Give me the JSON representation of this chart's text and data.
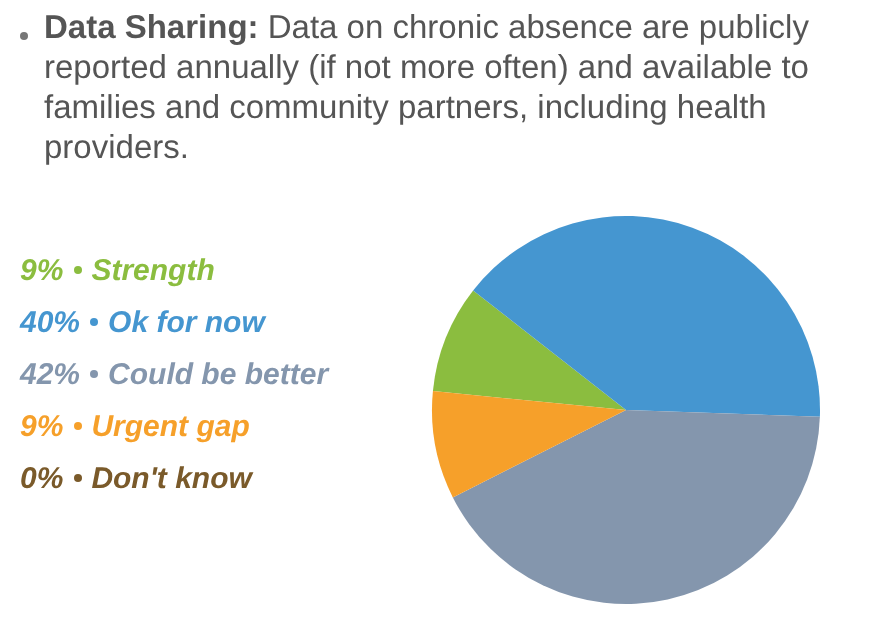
{
  "chart_data": {
    "type": "pie",
    "title": "Data Sharing:",
    "subtitle": "Data on chronic absence are publicly reported annually (if not more often) and available to families and community partners, including health providers.",
    "categories": [
      "Strength",
      "Ok for now",
      "Could be better",
      "Urgent gap",
      "Don't know"
    ],
    "values": [
      9,
      40,
      42,
      9,
      0
    ],
    "colors": [
      "#8bbd3f",
      "#4596d0",
      "#8496ad",
      "#f6a02a",
      "#7a5a2a"
    ],
    "value_labels": [
      "9%",
      "40%",
      "42%",
      "9%",
      "0%"
    ],
    "legend": "left"
  }
}
